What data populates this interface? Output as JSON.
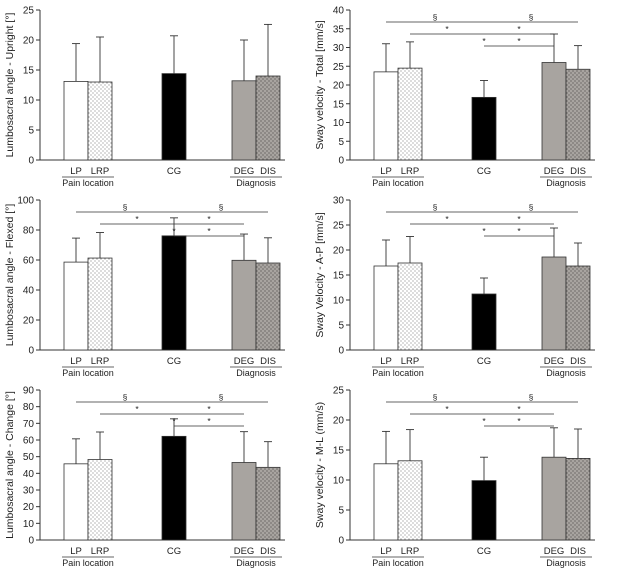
{
  "colors": {
    "bar_fill_cg": "#000000",
    "bar_fill_deg": "#a8a4a0",
    "bar_fill_dis": "#a8a4a0",
    "axis": "#333333"
  },
  "chart_data": [
    {
      "type": "bar",
      "ylabel": "Lumbosacral angle - Upright [°]",
      "ylim": [
        0,
        25
      ],
      "yticks": [
        0,
        5,
        10,
        15,
        20,
        25
      ],
      "categories": [
        "LP",
        "LRP",
        "CG",
        "DEG",
        "DIS"
      ],
      "values": [
        13.1,
        13.0,
        14.4,
        13.2,
        14.0
      ],
      "errors": [
        6.3,
        7.5,
        6.3,
        6.8,
        8.6
      ],
      "group_labels": [
        "Pain location",
        "CG",
        "Diagnosis"
      ],
      "significance": []
    },
    {
      "type": "bar",
      "ylabel": "Sway velocity - Total [mm/s]",
      "ylim": [
        0,
        40
      ],
      "yticks": [
        0,
        5,
        10,
        15,
        20,
        25,
        30,
        35,
        40
      ],
      "categories": [
        "LP",
        "LRP",
        "CG",
        "DEG",
        "DIS"
      ],
      "values": [
        23.5,
        24.5,
        16.7,
        26.0,
        24.2
      ],
      "errors": [
        7.5,
        7.0,
        4.5,
        7.6,
        6.3
      ],
      "group_labels": [
        "Pain location",
        "CG",
        "Diagnosis"
      ],
      "significance": [
        "§",
        "*",
        "*"
      ]
    },
    {
      "type": "bar",
      "ylabel": "Lumbosacral angle - Flexed [°]",
      "ylim": [
        0,
        100
      ],
      "yticks": [
        0,
        20,
        40,
        60,
        80,
        100
      ],
      "categories": [
        "LP",
        "LRP",
        "CG",
        "DEG",
        "DIS"
      ],
      "values": [
        58.6,
        61.3,
        76.1,
        59.8,
        58.0
      ],
      "errors": [
        16.0,
        17.0,
        12.0,
        17.5,
        16.8
      ],
      "group_labels": [
        "Pain location",
        "CG",
        "Diagnosis"
      ],
      "significance": [
        "§",
        "*",
        "*"
      ]
    },
    {
      "type": "bar",
      "ylabel": "Sway Velocity - A-P [mm/s]",
      "ylim": [
        0,
        30
      ],
      "yticks": [
        0,
        5,
        10,
        15,
        20,
        25,
        30
      ],
      "categories": [
        "LP",
        "LRP",
        "CG",
        "DEG",
        "DIS"
      ],
      "values": [
        16.8,
        17.4,
        11.2,
        18.6,
        16.8
      ],
      "errors": [
        5.2,
        5.3,
        3.2,
        5.8,
        4.6
      ],
      "group_labels": [
        "Pain location",
        "CG",
        "Diagnosis"
      ],
      "significance": [
        "§",
        "*",
        "*"
      ]
    },
    {
      "type": "bar",
      "ylabel": "Lumbosacral angle - Change [°]",
      "ylim": [
        0,
        90
      ],
      "yticks": [
        0,
        10,
        20,
        30,
        40,
        50,
        60,
        70,
        80,
        90
      ],
      "categories": [
        "LP",
        "LRP",
        "CG",
        "DEG",
        "DIS"
      ],
      "values": [
        45.7,
        48.3,
        62.2,
        46.5,
        43.6
      ],
      "errors": [
        15.0,
        16.5,
        10.5,
        18.5,
        15.4
      ],
      "group_labels": [
        "Pain location",
        "CG",
        "Diagnosis"
      ],
      "significance": [
        "§",
        "*",
        "*"
      ]
    },
    {
      "type": "bar",
      "ylabel": "Sway velocity - M-L (mm/s)",
      "ylim": [
        0,
        25
      ],
      "yticks": [
        0,
        5,
        10,
        15,
        20,
        25
      ],
      "categories": [
        "LP",
        "LRP",
        "CG",
        "DEG",
        "DIS"
      ],
      "values": [
        12.7,
        13.2,
        9.9,
        13.8,
        13.6
      ],
      "errors": [
        5.4,
        5.2,
        3.9,
        4.9,
        4.9
      ],
      "group_labels": [
        "Pain location",
        "CG",
        "Diagnosis"
      ],
      "significance": [
        "§",
        "*",
        "*"
      ]
    }
  ]
}
